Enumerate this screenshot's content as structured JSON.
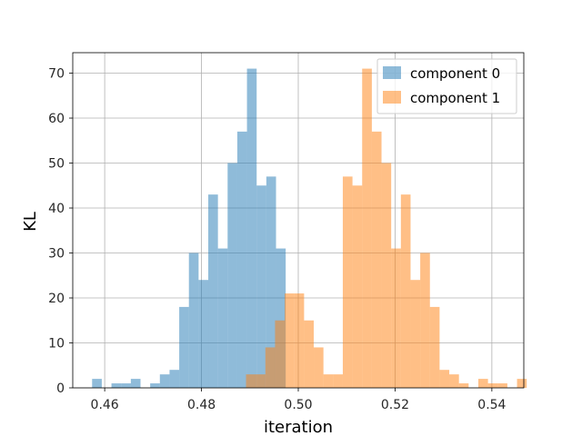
{
  "chart_data": {
    "type": "bar",
    "subtype": "histogram",
    "title": "",
    "xlabel": "iteration",
    "ylabel": "KL",
    "xlim": [
      0.4534,
      0.5466
    ],
    "ylim": [
      0,
      74.55
    ],
    "x_ticks": [
      "0.46",
      "0.48",
      "0.50",
      "0.52",
      "0.54"
    ],
    "y_ticks": [
      "0",
      "10",
      "20",
      "30",
      "40",
      "50",
      "60",
      "70"
    ],
    "grid": true,
    "legend_position": "top-right",
    "overlap_color": "#c8936a",
    "series": [
      {
        "name": "component 0",
        "color": "#1f77b4",
        "alpha": 0.5,
        "bin_start": 0.4574,
        "bin_width": 0.002,
        "counts": [
          2,
          0,
          1,
          1,
          2,
          0,
          1,
          3,
          4,
          18,
          30,
          24,
          43,
          31,
          50,
          57,
          71,
          45,
          47,
          31
        ]
      },
      {
        "name": "component 1",
        "color": "#ff7f0e",
        "alpha": 0.5,
        "bin_start": 0.4892,
        "bin_width": 0.002,
        "counts": [
          3,
          3,
          9,
          15,
          21,
          21,
          15,
          9,
          3,
          3,
          47,
          45,
          71,
          57,
          50,
          31,
          43,
          24,
          30,
          18,
          4,
          3,
          1,
          0,
          2,
          1,
          1,
          0,
          2
        ]
      }
    ]
  }
}
